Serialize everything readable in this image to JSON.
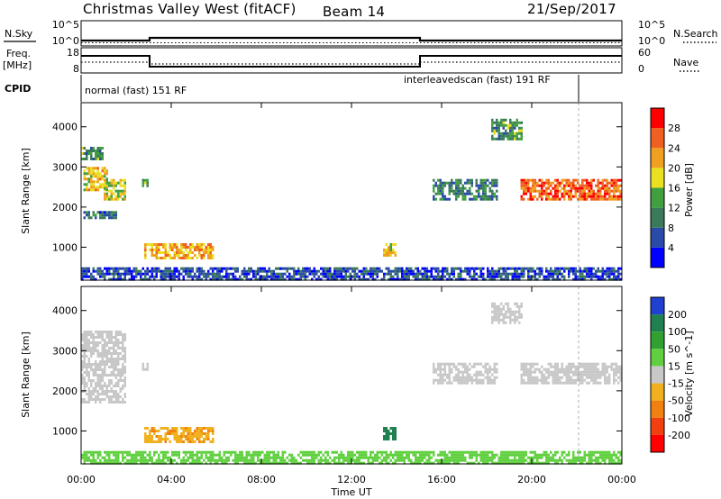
{
  "header": {
    "title": "Christmas Valley West (fitACF)",
    "beam": "Beam 14",
    "date": "21/Sep/2017"
  },
  "top_panels": {
    "nsky_label": "N.Sky",
    "nsearch_label": "N.Search",
    "freq_label_1": "Freq.",
    "freq_label_2": "[MHz]",
    "nave_label": "Nave",
    "cpid_label": "CPID",
    "noise_ticks": [
      "10^5",
      "10^0"
    ],
    "freq_ticks": [
      "18",
      "8"
    ],
    "nave_ticks": [
      "60",
      "0"
    ],
    "cpid_segments": [
      "normal (fast) 151 RF",
      "interleavedscan (fast) 191 RF"
    ]
  },
  "colors": {
    "power": [
      "#0000ff",
      "#2a4aa8",
      "#3a7a5a",
      "#40a040",
      "#e8e020",
      "#f0a020",
      "#f06020",
      "#ff0000"
    ],
    "velocity": [
      "#2040d0",
      "#208050",
      "#30a030",
      "#60d040",
      "#c8c8c8",
      "#f0b020",
      "#f08010",
      "#f04010",
      "#ff0000"
    ]
  },
  "chart_data": [
    {
      "type": "heatmap",
      "name": "power",
      "xlabel": "Time UT",
      "ylabel": "Slant Range [km]",
      "xlim": [
        0,
        24
      ],
      "ylim": [
        180,
        4600
      ],
      "xticks": [
        "00:00",
        "04:00",
        "08:00",
        "12:00",
        "16:00",
        "20:00",
        "00:00"
      ],
      "yticks": [
        1000,
        2000,
        3000,
        4000
      ],
      "colorbar_label": "Power [dB]",
      "colorbar_ticks": [
        4,
        8,
        12,
        16,
        20,
        24,
        28
      ],
      "regions": [
        {
          "t0": 0.0,
          "t1": 1.0,
          "r0": 3200,
          "r1": 3500,
          "p": 12
        },
        {
          "t0": 0.1,
          "t1": 1.2,
          "r0": 2400,
          "r1": 3000,
          "p": 20
        },
        {
          "t0": 1.0,
          "t1": 2.0,
          "r0": 2200,
          "r1": 2700,
          "p": 18
        },
        {
          "t0": 2.7,
          "t1": 3.0,
          "r0": 2500,
          "r1": 2700,
          "p": 14
        },
        {
          "t0": 0.1,
          "t1": 1.6,
          "r0": 1700,
          "r1": 1900,
          "p": 8
        },
        {
          "t0": 2.8,
          "t1": 5.9,
          "r0": 700,
          "r1": 1100,
          "p": 22
        },
        {
          "t0": 13.4,
          "t1": 13.9,
          "r0": 800,
          "r1": 1100,
          "p": 18
        },
        {
          "t0": 15.6,
          "t1": 18.5,
          "r0": 2200,
          "r1": 2700,
          "p": 10
        },
        {
          "t0": 18.2,
          "t1": 19.6,
          "r0": 3700,
          "r1": 4200,
          "p": 12
        },
        {
          "t0": 19.5,
          "t1": 24.0,
          "r0": 2200,
          "r1": 2700,
          "p": 26
        },
        {
          "t0": 0.0,
          "t1": 24.0,
          "r0": 180,
          "r1": 500,
          "p": 6
        }
      ]
    },
    {
      "type": "heatmap",
      "name": "velocity",
      "xlabel": "Time UT",
      "ylabel": "Slant Range [km]",
      "xlim": [
        0,
        24
      ],
      "ylim": [
        180,
        4600
      ],
      "xticks": [
        "00:00",
        "04:00",
        "08:00",
        "12:00",
        "16:00",
        "20:00",
        "00:00"
      ],
      "yticks": [
        1000,
        2000,
        3000,
        4000
      ],
      "colorbar_label": "Velocity [m s^-1]",
      "colorbar_ticks": [
        200,
        100,
        50,
        15,
        -15,
        -50,
        -100,
        -200
      ],
      "regions": [
        {
          "t0": 0.0,
          "t1": 2.0,
          "r0": 1700,
          "r1": 3500,
          "v": 0
        },
        {
          "t0": 2.7,
          "t1": 3.0,
          "r0": 2500,
          "r1": 2700,
          "v": 0
        },
        {
          "t0": 2.8,
          "t1": 5.9,
          "r0": 700,
          "r1": 1100,
          "v": -40
        },
        {
          "t0": 13.4,
          "t1": 13.9,
          "r0": 800,
          "r1": 1100,
          "v": 150
        },
        {
          "t0": 15.6,
          "t1": 18.5,
          "r0": 2200,
          "r1": 2700,
          "v": 0
        },
        {
          "t0": 18.2,
          "t1": 19.6,
          "r0": 3700,
          "r1": 4200,
          "v": 0
        },
        {
          "t0": 19.5,
          "t1": 24.0,
          "r0": 2200,
          "r1": 2700,
          "v": 0
        },
        {
          "t0": 0.0,
          "t1": 24.0,
          "r0": 180,
          "r1": 500,
          "v": 30
        }
      ]
    }
  ]
}
